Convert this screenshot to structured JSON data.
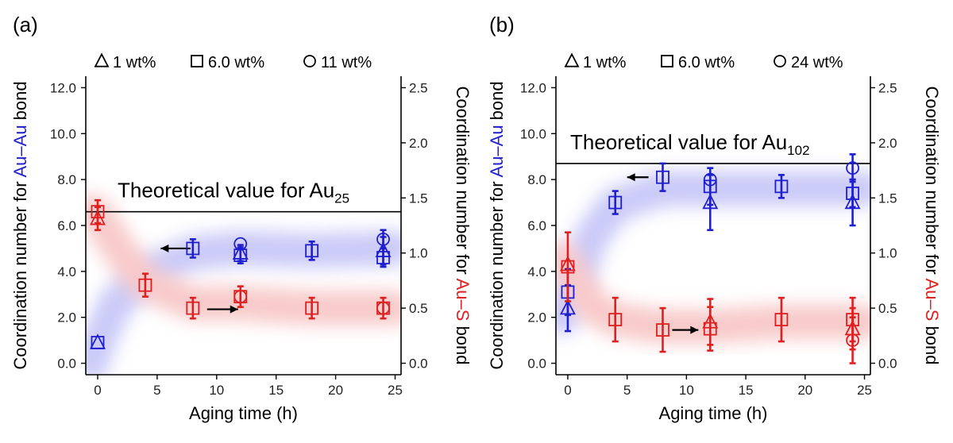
{
  "chart_data": [
    {
      "panel_label": "(a)",
      "type": "scatter",
      "xlabel": "Aging time (h)",
      "ylabel_left": {
        "parts": [
          "Coordination number for ",
          "Au–Au",
          " bond"
        ]
      },
      "ylabel_right": {
        "parts": [
          "Coordination number for ",
          "Au–S",
          " bond"
        ]
      },
      "xlim": [
        -1,
        25.5
      ],
      "xticks": [
        0,
        5,
        10,
        15,
        20,
        25
      ],
      "ylim_left": [
        -0.5,
        12.5
      ],
      "yticks_left": [
        "0.0",
        "2.0",
        "4.0",
        "6.0",
        "8.0",
        "10.0",
        "12.0"
      ],
      "ylim_right": [
        -0.1042,
        2.6042
      ],
      "yticks_right": [
        "0.0",
        "0.5",
        "1.0",
        "1.5",
        "2.0",
        "2.5"
      ],
      "legend": [
        {
          "marker": "triangle",
          "label": "1 wt%"
        },
        {
          "marker": "square",
          "label": "6.0 wt%"
        },
        {
          "marker": "circle",
          "label": "11 wt%"
        }
      ],
      "theoretical": {
        "text": "Theoretical value for Au",
        "sub": "25",
        "y": 6.6
      },
      "colors": {
        "au_au": "#1f1fd0",
        "au_s": "#e02020"
      },
      "series": [
        {
          "name": "1 wt%",
          "bond": "Au–Au",
          "marker": "triangle",
          "color": "#1f1fd0",
          "points": [
            {
              "x": 0,
              "y": 0.9
            },
            {
              "x": 12,
              "y": 4.8,
              "err": 0.35
            },
            {
              "x": 24,
              "y": 4.9,
              "err": 0.6
            }
          ]
        },
        {
          "name": "6.0 wt%",
          "bond": "Au–Au",
          "marker": "square",
          "color": "#1f1fd0",
          "points": [
            {
              "x": 0,
              "y": 0.9
            },
            {
              "x": 8,
              "y": 5.0,
              "err": 0.4
            },
            {
              "x": 12,
              "y": 4.7,
              "err": 0.35
            },
            {
              "x": 18,
              "y": 4.9,
              "err": 0.4
            },
            {
              "x": 24,
              "y": 4.6,
              "err": 0.4
            }
          ]
        },
        {
          "name": "11 wt%",
          "bond": "Au–Au",
          "marker": "circle",
          "color": "#1f1fd0",
          "points": [
            {
              "x": 12,
              "y": 5.2
            },
            {
              "x": 24,
              "y": 5.4,
              "err": 0.4
            }
          ]
        },
        {
          "name": "1 wt%",
          "bond": "Au–S",
          "marker": "triangle",
          "color": "#e02020",
          "points": [
            {
              "x": 0,
              "y": 6.3,
              "err": 0.5
            }
          ]
        },
        {
          "name": "6.0 wt%",
          "bond": "Au–S",
          "marker": "square",
          "color": "#e02020",
          "points": [
            {
              "x": 0,
              "y": 6.6,
              "err": 0.5
            },
            {
              "x": 4,
              "y": 3.4,
              "err": 0.5
            },
            {
              "x": 8,
              "y": 2.4,
              "err": 0.45
            },
            {
              "x": 12,
              "y": 2.9,
              "err": 0.45
            },
            {
              "x": 18,
              "y": 2.4,
              "err": 0.45
            },
            {
              "x": 24,
              "y": 2.4,
              "err": 0.45
            }
          ]
        },
        {
          "name": "11 wt%",
          "bond": "Au–S",
          "marker": "circle",
          "color": "#e02020",
          "points": [
            {
              "x": 12,
              "y": 2.9
            },
            {
              "x": 24,
              "y": 2.4
            }
          ]
        }
      ],
      "arrows": [
        {
          "x": 7.8,
          "y": 5.0,
          "dir": "left",
          "to_x": 5.3
        },
        {
          "x": 9.2,
          "y": 2.35,
          "dir": "right",
          "to_x": 11.8
        }
      ],
      "bands": [
        {
          "color": "#8a8af0",
          "points": [
            [
              -0.5,
              0.0
            ],
            [
              0,
              0.9
            ],
            [
              1.5,
              2.6
            ],
            [
              4,
              3.9
            ],
            [
              8,
              4.8
            ],
            [
              12,
              5.0
            ],
            [
              18,
              4.9
            ],
            [
              25,
              5.0
            ]
          ]
        },
        {
          "color": "#f08a8a",
          "points": [
            [
              -0.5,
              6.6
            ],
            [
              0,
              6.4
            ],
            [
              2,
              4.8
            ],
            [
              4,
              3.5
            ],
            [
              8,
              2.6
            ],
            [
              12,
              2.6
            ],
            [
              18,
              2.4
            ],
            [
              25,
              2.4
            ]
          ]
        }
      ]
    },
    {
      "panel_label": "(b)",
      "type": "scatter",
      "xlabel": "Aging time (h)",
      "ylabel_left": {
        "parts": [
          "Coordination number for ",
          "Au–Au",
          " bond"
        ]
      },
      "ylabel_right": {
        "parts": [
          "Coordination number for ",
          "Au–S",
          " bond"
        ]
      },
      "xlim": [
        -1,
        25.5
      ],
      "xticks": [
        0,
        5,
        10,
        15,
        20,
        25
      ],
      "ylim_left": [
        -0.5,
        12.5
      ],
      "yticks_left": [
        "0.0",
        "2.0",
        "4.0",
        "6.0",
        "8.0",
        "10.0",
        "12.0"
      ],
      "ylim_right": [
        -0.1042,
        2.6042
      ],
      "yticks_right": [
        "0.0",
        "0.5",
        "1.0",
        "1.5",
        "2.0",
        "2.5"
      ],
      "legend": [
        {
          "marker": "triangle",
          "label": "1 wt%"
        },
        {
          "marker": "square",
          "label": "6.0 wt%"
        },
        {
          "marker": "circle",
          "label": "24 wt%"
        }
      ],
      "theoretical": {
        "text": "Theoretical value for Au",
        "sub": "102",
        "y": 8.7
      },
      "colors": {
        "au_au": "#1f1fd0",
        "au_s": "#e02020"
      },
      "series": [
        {
          "name": "1 wt%",
          "bond": "Au–Au",
          "marker": "triangle",
          "color": "#1f1fd0",
          "points": [
            {
              "x": 0,
              "y": 2.4,
              "err": 1.0
            },
            {
              "x": 12,
              "y": 7.0,
              "err": 1.2
            },
            {
              "x": 24,
              "y": 7.0,
              "err": 1.0
            }
          ]
        },
        {
          "name": "6.0 wt%",
          "bond": "Au–Au",
          "marker": "square",
          "color": "#1f1fd0",
          "points": [
            {
              "x": 0,
              "y": 3.1,
              "err": 1.0
            },
            {
              "x": 4,
              "y": 7.0,
              "err": 0.5
            },
            {
              "x": 8,
              "y": 8.1,
              "err": 0.6
            },
            {
              "x": 12,
              "y": 7.7,
              "err": 0.8
            },
            {
              "x": 18,
              "y": 7.7,
              "err": 0.5
            },
            {
              "x": 24,
              "y": 7.4,
              "err": 0.6
            }
          ]
        },
        {
          "name": "24 wt%",
          "bond": "Au–Au",
          "marker": "circle",
          "color": "#1f1fd0",
          "points": [
            {
              "x": 12,
              "y": 8.0
            },
            {
              "x": 24,
              "y": 8.5,
              "err": 0.6
            }
          ]
        },
        {
          "name": "1 wt%",
          "bond": "Au–S",
          "marker": "triangle",
          "color": "#e02020",
          "points": [
            {
              "x": 0,
              "y": 4.3
            },
            {
              "x": 12,
              "y": 1.8,
              "err": 1.0
            },
            {
              "x": 24,
              "y": 1.5,
              "err": 0.9
            }
          ]
        },
        {
          "name": "6.0 wt%",
          "bond": "Au–S",
          "marker": "square",
          "color": "#e02020",
          "points": [
            {
              "x": 0,
              "y": 4.2,
              "err": 1.5
            },
            {
              "x": 4,
              "y": 1.9,
              "err": 0.95
            },
            {
              "x": 8,
              "y": 1.45,
              "err": 0.95
            },
            {
              "x": 12,
              "y": 1.5,
              "err": 0.95
            },
            {
              "x": 18,
              "y": 1.9,
              "err": 0.95
            },
            {
              "x": 24,
              "y": 1.9,
              "err": 0.95
            }
          ]
        },
        {
          "name": "24 wt%",
          "bond": "Au–S",
          "marker": "circle",
          "color": "#e02020",
          "points": [
            {
              "x": 24,
              "y": 1.0,
              "err": 1.0
            }
          ]
        }
      ],
      "arrows": [
        {
          "x": 6.8,
          "y": 8.1,
          "dir": "left",
          "to_x": 5.0
        },
        {
          "x": 8.8,
          "y": 1.45,
          "dir": "right",
          "to_x": 11.0
        }
      ],
      "bands": [
        {
          "color": "#8a8af0",
          "points": [
            [
              -0.5,
              2.0
            ],
            [
              0,
              2.8
            ],
            [
              2,
              5.5
            ],
            [
              4,
              6.9
            ],
            [
              8,
              7.6
            ],
            [
              12,
              7.6
            ],
            [
              18,
              7.6
            ],
            [
              25,
              7.6
            ]
          ]
        },
        {
          "color": "#f08a8a",
          "points": [
            [
              -0.5,
              4.6
            ],
            [
              0,
              4.2
            ],
            [
              2,
              2.5
            ],
            [
              4,
              1.9
            ],
            [
              8,
              1.6
            ],
            [
              12,
              1.6
            ],
            [
              18,
              1.8
            ],
            [
              25,
              1.8
            ]
          ]
        }
      ]
    }
  ]
}
